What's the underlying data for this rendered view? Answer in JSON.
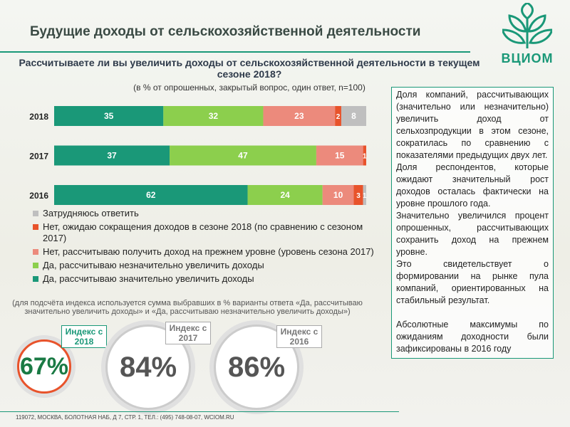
{
  "slide": {
    "title": "Будущие доходы от сельскохозяйственной деятельности",
    "logo": "ВЦИОМ",
    "note": "(для подсчёта индекса используется сумма выбравших  в % варианты ответа «Да, рассчитываю значительно увеличить доходы» и «Да, рассчитываю незначительно увеличить доходы»)",
    "commentary": [
      "Доля компаний, рассчитывающих (значительно или незначительно) увеличить доход от сельхозпродукции в этом сезоне, сократилась по сравнению с показателями предыдущих двух лет.",
      "Доля респондентов, которые ожидают значительный рост доходов осталась фактически на уровне прошлого года.",
      "Значительно увеличился процент опрошенных, рассчитывающих сохранить доход на прежнем уровне.",
      "Это свидетельствует о формировании на рынке пула компаний, ориентированных на стабильный результат.",
      "Абсолютные максимумы по ожиданиям доходности были зафиксированы в 2016 году"
    ],
    "indices": [
      {
        "label": "Индекс с 2018",
        "value": "67%"
      },
      {
        "label": "Индекс с 2017",
        "value": "84%"
      },
      {
        "label": "Индекс с 2016",
        "value": "86%"
      }
    ],
    "footer": "119072, МОСКВА, БОЛОТНАЯ НАБ, Д 7, СТР. 1, ТЕЛ.: (495) 748-08-07, WCIOM.RU"
  },
  "chart_data": {
    "type": "stacked-bar-horizontal",
    "title": "Рассчитываете ли вы увеличить доходы от сельскохозяйственной деятельности в текущем сезоне 2018?",
    "subtitle": "(в % от опрошенных, закрытый вопрос, один ответ, n=100)",
    "categories": [
      "2018",
      "2017",
      "2016"
    ],
    "xlim": [
      0,
      100
    ],
    "series": [
      {
        "name": "Да, рассчитываю значительно увеличить доходы",
        "color": "#1a9878",
        "values": [
          35,
          37,
          62
        ]
      },
      {
        "name": "Да, рассчитываю незначительно увеличить доходы",
        "color": "#8ccf4d",
        "values": [
          32,
          47,
          24
        ]
      },
      {
        "name": "Нет, рассчитываю получить доход на прежнем уровне (уровень сезона 2017)",
        "color": "#ec8a7c",
        "values": [
          23,
          15,
          10
        ]
      },
      {
        "name": "Нет, ожидаю сокращения доходов в сезоне 2018 (по сравнению с сезоном 2017)",
        "color": "#e8532b",
        "values": [
          2,
          1,
          3
        ]
      },
      {
        "name": "Затрудняюсь ответить",
        "color": "#bfbfbf",
        "values": [
          8,
          0,
          1
        ]
      }
    ]
  }
}
